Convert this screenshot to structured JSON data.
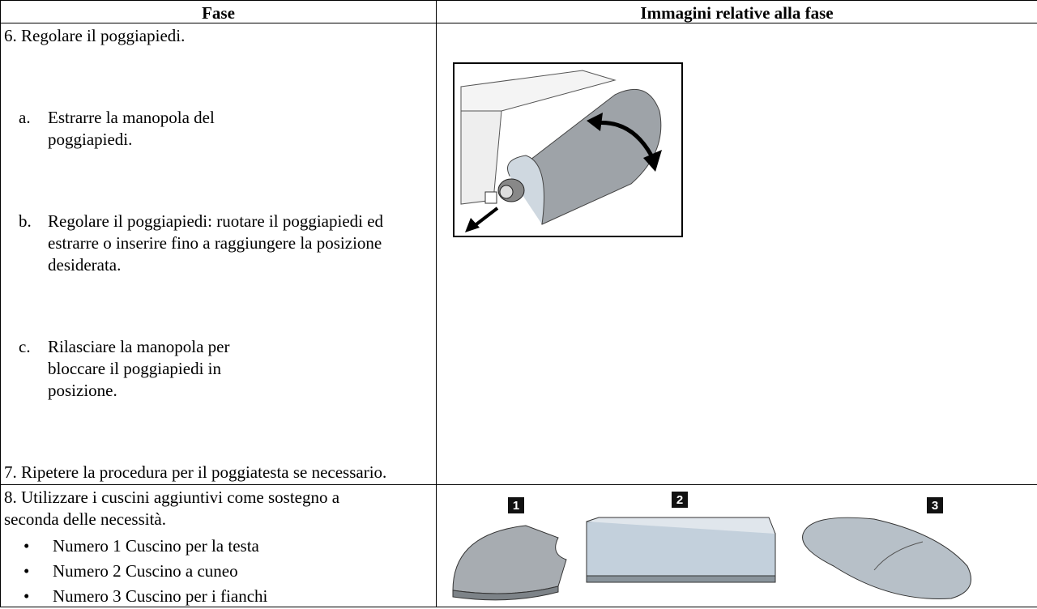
{
  "table": {
    "headers": [
      "Fase",
      "Immagini relative alla fase"
    ],
    "rows": [
      {
        "step": "6. Regolare il poggiapiedi.",
        "substeps": [
          {
            "marker": "a.",
            "text": "Estrarre la manopola del poggiapiedi."
          },
          {
            "marker": "b.",
            "text": "Regolare il poggiapiedi: ruotare il poggiapiedi ed estrarre o inserire fino a raggiungere la posizione desiderata."
          },
          {
            "marker": "c.",
            "text": "Rilasciare la manopola per bloccare il poggiapiedi in posizione."
          }
        ],
        "after": "7. Ripetere la procedura per il poggiatesta se necessario."
      },
      {
        "step": "8. Utilizzare i cuscini aggiuntivi come sostegno a seconda delle necessità.",
        "bullets": [
          "Numero 1 Cuscino per la testa",
          "Numero 2 Cuscino a cuneo",
          "Numero 3 Cuscino per i fianchi"
        ],
        "image_labels": [
          "1",
          "2",
          "3"
        ]
      }
    ]
  }
}
